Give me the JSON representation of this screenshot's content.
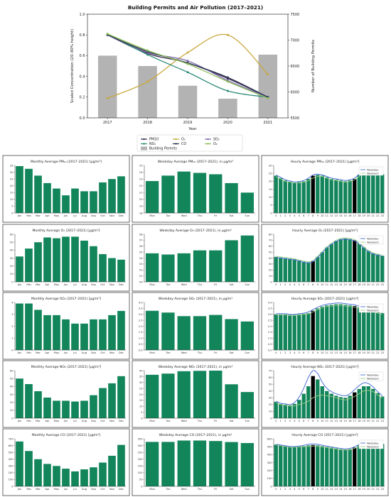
{
  "chart_data": [
    {
      "type": "bar+line",
      "title": "Building Permits and Air Pollution (2017–2021)",
      "xlabel": "Year",
      "ylabel_left": "Scaled Concentration (20–80% height)",
      "ylabel_right": "Number of Building Permits",
      "categories": [
        "2017",
        "2018",
        "2019",
        "2020",
        "2021"
      ],
      "ylim_left": [
        0.0,
        1.0
      ],
      "yticks_left": [
        "0.0",
        "0.2",
        "0.4",
        "0.6",
        "0.8",
        "1.0"
      ],
      "ylim_right": [
        5500,
        7500
      ],
      "yticks_right": [
        "5500",
        "6000",
        "6500",
        "7000",
        "7500"
      ],
      "bars": {
        "name": "Building Permits",
        "values": [
          6700,
          6500,
          6120,
          5870,
          6720
        ],
        "color": "#b3b3b3"
      },
      "series": [
        {
          "name": "PM10",
          "values": [
            0.8,
            0.62,
            0.53,
            0.38,
            0.2
          ],
          "color": "#3b2a55"
        },
        {
          "name": "O₃",
          "values": [
            0.19,
            0.35,
            0.63,
            0.8,
            0.42
          ],
          "color": "#c8a83e"
        },
        {
          "name": "SO₂",
          "values": [
            0.8,
            0.63,
            0.55,
            0.36,
            0.2
          ],
          "color": "#7d6aa8"
        },
        {
          "name": "NO₂",
          "values": [
            0.81,
            0.61,
            0.44,
            0.26,
            0.2
          ],
          "color": "#2e8b78"
        },
        {
          "name": "CO",
          "values": [
            0.8,
            0.64,
            0.53,
            0.39,
            0.2
          ],
          "color": "#2a3550"
        },
        {
          "name": "O₂",
          "values": [
            0.81,
            0.65,
            0.52,
            0.35,
            0.19
          ],
          "color": "#8cbf5a"
        }
      ],
      "legend": [
        "PM10",
        "O₃",
        "SO₂",
        "NO₂",
        "CO",
        "O₂",
        "Building Permits"
      ],
      "legend_placement": "bottom-center"
    }
  ],
  "grid": {
    "months": [
      "Jan",
      "Feb",
      "Mar",
      "Apr",
      "May",
      "Jun",
      "Jul",
      "Aug",
      "Sep",
      "Oct",
      "Nov",
      "Dec"
    ],
    "weekdays": [
      "Mon",
      "Tue",
      "Wed",
      "Thu",
      "Fri",
      "Sat",
      "Sun"
    ],
    "hours": [
      "0",
      "1",
      "2",
      "3",
      "4",
      "5",
      "6",
      "7",
      "8",
      "9",
      "10",
      "11",
      "12",
      "13",
      "14",
      "15",
      "16",
      "17",
      "18",
      "19",
      "20",
      "21",
      "22",
      "23"
    ],
    "hourly_legend": [
      "Weekday",
      "Weekend"
    ],
    "highlight_hours": [
      8,
      17
    ],
    "bar_color": "#12855a",
    "highlight_color": "#000000",
    "weekday_line_color": "#4c6fd6",
    "weekend_line_color": "#9ed18a",
    "rows": [
      {
        "monthly": {
          "title": "Monthly Average PM₁₀ (2017–2021) [μg/m³]",
          "ylim": [
            0,
            35
          ],
          "yticks": [
            "0",
            "5",
            "10",
            "15",
            "20",
            "25",
            "30",
            "35"
          ],
          "values": [
            34.5,
            32.5,
            27.5,
            22.0,
            18.0,
            13.0,
            18.0,
            16.0,
            16.0,
            22.5,
            25.0,
            27.0
          ]
        },
        "weekday": {
          "title": "Weekday Average PM₁₀ (2017–2021), in μg/m³",
          "ylim": [
            18,
            25
          ],
          "yticks": [
            "18",
            "19",
            "20",
            "21",
            "22",
            "23",
            "24",
            "25"
          ],
          "values": [
            22.7,
            23.5,
            24.1,
            23.9,
            23.7,
            22.4,
            21.0
          ]
        },
        "hourly": {
          "title": "Hourly Average PM₁₀ (2017–2021) [μg/m³]",
          "ylim": [
            0,
            30
          ],
          "yticks": [
            "0",
            "5",
            "10",
            "15",
            "20",
            "25",
            "30"
          ],
          "values": [
            23.5,
            22.0,
            20.5,
            19.8,
            19.2,
            19.5,
            20.0,
            21.5,
            23.5,
            24.0,
            23.5,
            22.5,
            21.5,
            21.0,
            20.5,
            20.0,
            20.5,
            21.5,
            24.0,
            26.5,
            27.5,
            27.0,
            26.0,
            24.5
          ],
          "weekday_line": [
            24.0,
            22.5,
            21.0,
            20.2,
            19.6,
            19.8,
            20.5,
            22.0,
            24.0,
            24.5,
            24.0,
            23.0,
            22.0,
            21.5,
            21.0,
            20.5,
            21.0,
            22.0,
            24.5,
            27.0,
            28.5,
            28.0,
            27.0,
            25.0
          ],
          "weekend_line": [
            23.0,
            21.5,
            20.0,
            19.5,
            19.0,
            19.0,
            19.5,
            20.5,
            22.0,
            23.0,
            23.0,
            22.0,
            21.0,
            20.5,
            20.0,
            19.5,
            20.0,
            21.0,
            23.0,
            25.5,
            26.5,
            26.0,
            25.0,
            24.0
          ]
        }
      },
      {
        "monthly": {
          "title": "Monthly Average O₃ (2017–2021) [μg/m³]",
          "ylim": [
            0,
            60
          ],
          "yticks": [
            "0",
            "10",
            "20",
            "30",
            "40",
            "50",
            "60"
          ],
          "values": [
            32.0,
            42.0,
            50.0,
            56.0,
            55.0,
            57.0,
            57.0,
            52.0,
            45.0,
            35.0,
            30.0,
            28.0
          ]
        },
        "weekday": {
          "title": "Weekday Average O₃ (2017–2021), in μg/m³",
          "ylim": [
            50,
            58
          ],
          "yticks": [
            "50",
            "51",
            "52",
            "53",
            "54",
            "55",
            "56",
            "57",
            "58"
          ],
          "values": [
            54.8,
            54.6,
            54.8,
            55.3,
            55.3,
            57.0,
            57.8
          ]
        },
        "hourly": {
          "title": "Hourly Average O₃ (2017–2021) [μg/m³]",
          "ylim": [
            0,
            80
          ],
          "yticks": [
            "0",
            "10",
            "20",
            "30",
            "40",
            "50",
            "60",
            "70",
            "80"
          ],
          "values": [
            42.0,
            41.0,
            40.0,
            39.0,
            38.0,
            36.0,
            34.0,
            33.0,
            35.0,
            42.0,
            50.0,
            58.0,
            64.0,
            69.0,
            72.0,
            73.0,
            72.0,
            70.0,
            65.0,
            58.0,
            52.0,
            48.0,
            46.0,
            44.0
          ],
          "weekday_line": [
            41.0,
            40.0,
            39.0,
            38.0,
            37.0,
            35.0,
            33.0,
            32.0,
            34.0,
            41.0,
            49.0,
            57.0,
            63.0,
            68.0,
            71.0,
            72.0,
            71.0,
            69.0,
            64.0,
            57.0,
            51.0,
            47.0,
            45.0,
            43.0
          ],
          "weekend_line": [
            43.0,
            42.0,
            41.0,
            40.0,
            39.0,
            37.0,
            35.0,
            34.0,
            36.0,
            43.0,
            51.0,
            59.0,
            65.0,
            70.0,
            73.0,
            74.0,
            73.0,
            71.0,
            66.0,
            59.0,
            53.0,
            49.0,
            47.0,
            45.0
          ]
        }
      },
      {
        "monthly": {
          "title": "Monthly Average SO₂ (2017–2021) [μg/m³]",
          "ylim": [
            0,
            4.5
          ],
          "yticks": [
            "0",
            "1",
            "2",
            "3",
            "4"
          ],
          "values": [
            4.4,
            4.4,
            3.8,
            3.3,
            3.3,
            2.9,
            2.5,
            2.5,
            2.9,
            2.9,
            3.3,
            3.7
          ]
        },
        "weekday": {
          "title": "Weekday Average SO₂ (2017–2021), in μg/m³",
          "ylim": [
            0,
            4.0
          ],
          "yticks": [
            "0.0",
            "0.5",
            "1.0",
            "1.5",
            "2.0",
            "2.5",
            "3.0",
            "3.5",
            "4.0"
          ],
          "values": [
            3.3,
            3.15,
            2.85,
            2.85,
            2.95,
            2.6,
            2.4
          ]
        },
        "hourly": {
          "title": "Hourly Average SO₂ (2017–2021) [μg/m³]",
          "ylim": [
            0,
            4.0
          ],
          "yticks": [
            "0.0",
            "0.5",
            "1.0",
            "1.5",
            "2.0",
            "2.5",
            "3.0",
            "3.5",
            "4.0"
          ],
          "values": [
            3.0,
            3.0,
            3.0,
            2.95,
            2.95,
            3.0,
            3.05,
            3.1,
            3.3,
            3.5,
            3.65,
            3.75,
            3.8,
            3.85,
            3.85,
            3.8,
            3.75,
            3.7,
            3.6,
            3.5,
            3.4,
            3.3,
            3.2,
            3.1
          ],
          "weekday_line": [
            3.05,
            3.05,
            3.05,
            3.0,
            3.0,
            3.05,
            3.1,
            3.2,
            3.4,
            3.6,
            3.75,
            3.85,
            3.9,
            3.95,
            3.95,
            3.9,
            3.85,
            3.8,
            3.7,
            3.6,
            3.5,
            3.4,
            3.3,
            3.15
          ],
          "weekend_line": [
            2.95,
            2.95,
            2.95,
            2.9,
            2.9,
            2.95,
            3.0,
            3.05,
            3.2,
            3.4,
            3.55,
            3.65,
            3.7,
            3.75,
            3.75,
            3.7,
            3.65,
            3.6,
            3.5,
            3.4,
            3.3,
            3.2,
            3.1,
            3.0
          ]
        }
      },
      {
        "monthly": {
          "title": "Monthly Average NO₂ (2017–2021) [μg/m³]",
          "ylim": [
            0,
            60
          ],
          "yticks": [
            "0",
            "10",
            "20",
            "30",
            "40",
            "50",
            "60"
          ],
          "values": [
            50.0,
            43.0,
            34.0,
            26.0,
            22.0,
            22.0,
            21.0,
            22.0,
            29.0,
            38.0,
            44.0,
            53.0
          ]
        },
        "weekday": {
          "title": "Weekday Average NO₂ (2017–2021), in μg/m³",
          "ylim": [
            0,
            40
          ],
          "yticks": [
            "0",
            "5",
            "10",
            "15",
            "20",
            "25",
            "30",
            "35",
            "40"
          ],
          "values": [
            36.5,
            37.5,
            39.5,
            39.8,
            40.5,
            28.5,
            22.0
          ]
        },
        "hourly": {
          "title": "Hourly Average NO₂ (2017–2021) [μg/m³]",
          "ylim": [
            0,
            70
          ],
          "yticks": [
            "0",
            "10",
            "20",
            "30",
            "40",
            "50",
            "60",
            "70"
          ],
          "values": [
            24.0,
            21.0,
            20.0,
            19.0,
            21.0,
            27.0,
            36.0,
            47.0,
            62.0,
            57.0,
            47.0,
            40.0,
            36.0,
            33.0,
            31.0,
            30.0,
            33.0,
            38.0,
            43.0,
            47.0,
            47.0,
            43.0,
            37.0,
            32.0
          ],
          "weekday_line": [
            25.0,
            22.0,
            21.0,
            20.0,
            23.0,
            31.0,
            44.0,
            60.0,
            72.0,
            66.0,
            53.0,
            44.0,
            39.0,
            36.0,
            34.0,
            33.0,
            36.0,
            42.0,
            48.0,
            52.0,
            51.0,
            46.0,
            39.0,
            33.0
          ],
          "weekend_line": [
            23.0,
            20.0,
            19.0,
            18.0,
            18.0,
            20.0,
            22.0,
            25.0,
            30.0,
            33.0,
            34.0,
            33.0,
            32.0,
            30.0,
            28.0,
            27.0,
            29.0,
            32.0,
            36.0,
            40.0,
            41.0,
            39.0,
            34.0,
            30.0
          ]
        }
      },
      {
        "monthly": {
          "title": "Monthly Average CO (2017–2021) [μg/m³]",
          "ylim": [
            0,
            700
          ],
          "yticks": [
            "0",
            "100",
            "200",
            "300",
            "400",
            "500",
            "600",
            "700"
          ],
          "values": [
            660.0,
            520.0,
            400.0,
            330.0,
            300.0,
            260.0,
            220.0,
            250.0,
            280.0,
            350.0,
            450.0,
            610.0
          ]
        },
        "weekday": {
          "title": "Weekday Average CO (2017–2021), in μg/m³",
          "ylim": [
            0,
            380
          ],
          "yticks": [
            "0",
            "50",
            "100",
            "150",
            "200",
            "250",
            "300",
            "350"
          ],
          "values": [
            355.0,
            355.0,
            366.0,
            366.0,
            362.0,
            354.0,
            346.0
          ]
        },
        "hourly": {
          "title": "Hourly Average CO (2017–2021) [μg/m³]",
          "ylim": [
            0,
            650
          ],
          "yticks": [
            "0",
            "100",
            "200",
            "300",
            "400",
            "500",
            "600"
          ],
          "values": [
            570.0,
            560.0,
            550.0,
            540.0,
            540.0,
            545.0,
            550.0,
            560.0,
            565.0,
            560.0,
            550.0,
            540.0,
            530.0,
            520.0,
            510.0,
            505.0,
            510.0,
            530.0,
            560.0,
            590.0,
            610.0,
            615.0,
            600.0,
            580.0
          ],
          "weekday_line": [
            575.0,
            565.0,
            555.0,
            545.0,
            545.0,
            550.0,
            560.0,
            575.0,
            580.0,
            575.0,
            562.0,
            550.0,
            538.0,
            528.0,
            518.0,
            512.0,
            518.0,
            540.0,
            572.0,
            602.0,
            622.0,
            626.0,
            610.0,
            588.0
          ],
          "weekend_line": [
            565.0,
            555.0,
            545.0,
            535.0,
            535.0,
            540.0,
            542.0,
            545.0,
            550.0,
            545.0,
            538.0,
            530.0,
            522.0,
            512.0,
            502.0,
            498.0,
            502.0,
            520.0,
            548.0,
            578.0,
            598.0,
            604.0,
            590.0,
            572.0
          ]
        }
      }
    ]
  }
}
